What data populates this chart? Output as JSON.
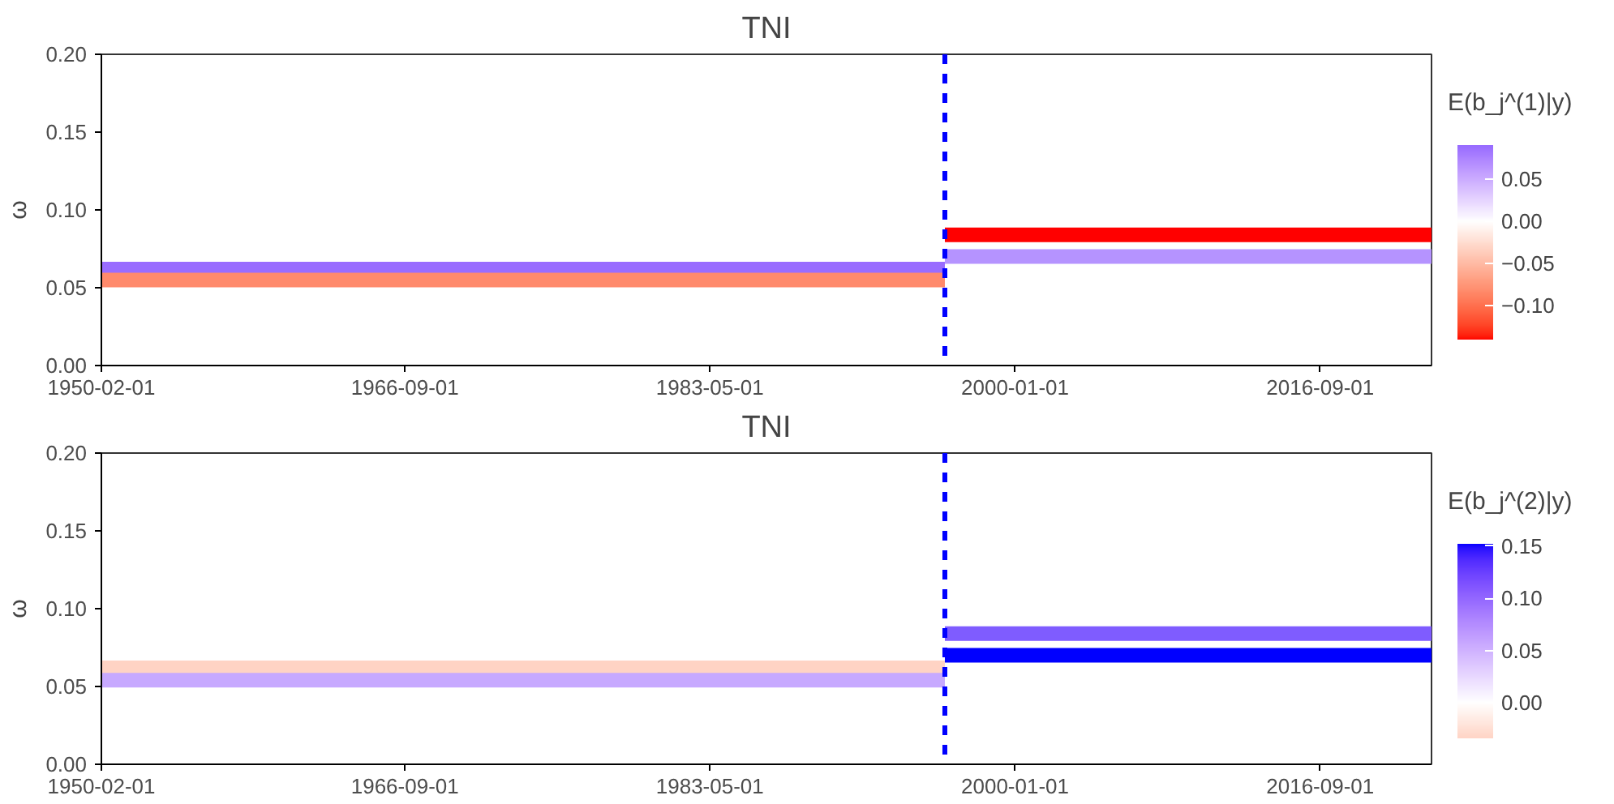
{
  "chart_data": [
    {
      "type": "line",
      "title": "TNI",
      "ylabel": "ω",
      "clabel": "E(b_j^(1)|y)",
      "xlim": [
        "1950-02-01",
        "2022-10-01"
      ],
      "xticks": [
        {
          "value": "1950-02-01",
          "label": "1950-02-01"
        },
        {
          "value": "1966-09-01",
          "label": "1966-09-01"
        },
        {
          "value": "1983-05-01",
          "label": "1983-05-01"
        },
        {
          "value": "2000-01-01",
          "label": "2000-01-01"
        },
        {
          "value": "2016-09-01",
          "label": "2016-09-01"
        }
      ],
      "ylim": [
        0,
        0.2
      ],
      "yticks": [
        {
          "value": 0,
          "label": "0.00"
        },
        {
          "value": 0.05,
          "label": "0.05"
        },
        {
          "value": 0.1,
          "label": "0.10"
        },
        {
          "value": 0.15,
          "label": "0.15"
        },
        {
          "value": 0.2,
          "label": "0.20"
        }
      ],
      "clim": [
        -0.14,
        0.09
      ],
      "cticks": [
        {
          "value": -0.1,
          "label": "−0.10"
        },
        {
          "value": -0.05,
          "label": "−0.05"
        },
        {
          "value": 0,
          "label": "0.00"
        },
        {
          "value": 0.05,
          "label": "0.05"
        }
      ],
      "series": [
        {
          "x": [
            "1950-02-01",
            "1996-03-01"
          ],
          "values": [
            0.062,
            0.062
          ],
          "color": "#996cff"
        },
        {
          "x": [
            "1950-02-01",
            "1996-03-01"
          ],
          "values": [
            0.055,
            0.055
          ],
          "color": "#ff8a6c"
        },
        {
          "x": [
            "1996-03-01",
            "2022-10-01"
          ],
          "values": [
            0.084,
            0.084
          ],
          "color": "#ff0000"
        },
        {
          "x": [
            "1996-03-01",
            "2022-10-01"
          ],
          "values": [
            0.07,
            0.07
          ],
          "color": "#b593ff"
        }
      ],
      "ref_lines": [
        {
          "axis": "x",
          "value": "1996-03-01",
          "color": "#0000ff",
          "line_style": "dashed"
        }
      ],
      "grid": false
    },
    {
      "type": "line",
      "title": "TNI",
      "ylabel": "ω",
      "clabel": "E(b_j^(2)|y)",
      "xlim": [
        "1950-02-01",
        "2022-10-01"
      ],
      "xticks": [
        {
          "value": "1950-02-01",
          "label": "1950-02-01"
        },
        {
          "value": "1966-09-01",
          "label": "1966-09-01"
        },
        {
          "value": "1983-05-01",
          "label": "1983-05-01"
        },
        {
          "value": "2000-01-01",
          "label": "2000-01-01"
        },
        {
          "value": "2016-09-01",
          "label": "2016-09-01"
        }
      ],
      "ylim": [
        0,
        0.2
      ],
      "yticks": [
        {
          "value": 0,
          "label": "0.00"
        },
        {
          "value": 0.05,
          "label": "0.05"
        },
        {
          "value": 0.1,
          "label": "0.10"
        },
        {
          "value": 0.15,
          "label": "0.15"
        },
        {
          "value": 0.2,
          "label": "0.20"
        }
      ],
      "clim": [
        -0.034,
        0.152
      ],
      "cticks": [
        {
          "value": 0,
          "label": "0.00"
        },
        {
          "value": 0.05,
          "label": "0.05"
        },
        {
          "value": 0.1,
          "label": "0.10"
        },
        {
          "value": 0.15,
          "label": "0.15"
        }
      ],
      "series": [
        {
          "x": [
            "1950-02-01",
            "1996-03-01"
          ],
          "values": [
            0.062,
            0.062
          ],
          "color": "#ffd3c4"
        },
        {
          "x": [
            "1950-02-01",
            "1996-03-01"
          ],
          "values": [
            0.054,
            0.054
          ],
          "color": "#c7a9ff"
        },
        {
          "x": [
            "1996-03-01",
            "2022-10-01"
          ],
          "values": [
            0.084,
            0.084
          ],
          "color": "#7f5cff"
        },
        {
          "x": [
            "1996-03-01",
            "2022-10-01"
          ],
          "values": [
            0.07,
            0.07
          ],
          "color": "#0000ff"
        }
      ],
      "ref_lines": [
        {
          "axis": "x",
          "value": "1996-03-01",
          "color": "#0000ff",
          "line_style": "dashed"
        }
      ],
      "grid": false
    }
  ]
}
